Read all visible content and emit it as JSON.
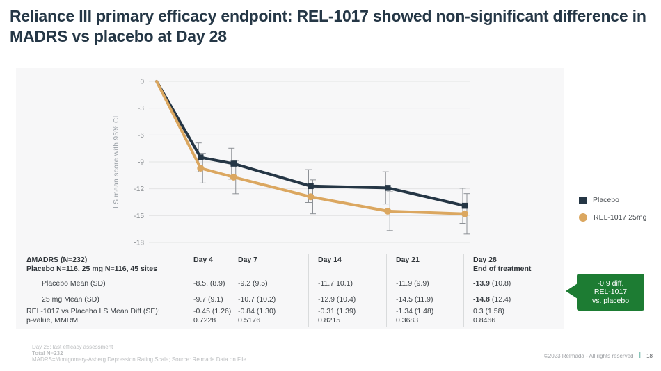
{
  "title": "Reliance III primary efficacy endpoint: REL-1017 showed non-significant difference in MADRS vs placebo at Day 28",
  "chart_data": {
    "type": "line",
    "ylabel": "LS mean score with 95% CI",
    "x_days": [
      0,
      4,
      7,
      14,
      21,
      28
    ],
    "yticks": [
      0,
      -3,
      -6,
      -9,
      -12,
      -15,
      -18
    ],
    "ylim": [
      0,
      -18
    ],
    "grid": true,
    "legend_position": "right",
    "error_bars": "95% CI",
    "n_per_arm": 116,
    "series": [
      {
        "name": "Placebo",
        "color": "#253645",
        "marker": "square",
        "values": [
          0,
          -8.5,
          -9.2,
          -11.7,
          -11.9,
          -13.9
        ],
        "sd": [
          null,
          8.9,
          9.5,
          10.1,
          9.9,
          10.8
        ]
      },
      {
        "name": "REL-1017 25mg",
        "color": "#dba760",
        "marker": "circle",
        "values": [
          0,
          -9.7,
          -10.7,
          -12.9,
          -14.5,
          -14.8
        ],
        "sd": [
          null,
          9.1,
          10.2,
          10.4,
          11.9,
          12.4
        ]
      }
    ]
  },
  "legend": {
    "items": [
      {
        "label": "Placebo",
        "color": "#253645",
        "marker": "square"
      },
      {
        "label": "REL-1017 25mg",
        "color": "#dba760",
        "marker": "circle"
      }
    ]
  },
  "table": {
    "header": {
      "col0_line1": "ΔMADRS (N=232)",
      "col0_line2": "Placebo N=116, 25 mg N=116, 45 sites",
      "days": [
        "Day 4",
        "Day 7",
        "Day 14",
        "Day 21",
        "Day 28"
      ],
      "day28_sub": "End of treatment"
    },
    "rows": [
      {
        "label": "Placebo Mean (SD)",
        "indent": true,
        "cells": [
          "-8.5, (8.9)",
          "-9.2 (9.5)",
          "-11.7 10.1)",
          "-11.9 (9.9)",
          {
            "strong": "-13.9",
            "rest": " (10.8)"
          }
        ]
      },
      {
        "label": "25 mg  Mean (SD)",
        "indent": true,
        "cells": [
          "-9.7 (9.1)",
          "-10.7 (10.2)",
          "-12.9 (10.4)",
          "-14.5 (11.9)",
          {
            "strong": "-14.8",
            "rest": " (12.4)"
          }
        ]
      },
      {
        "label": "REL-1017 vs Placebo LS Mean Diff (SE);",
        "label2": "p-value, MMRM",
        "indent": false,
        "cells": [
          [
            "-0.45 (1.26)",
            "0.7228"
          ],
          [
            "-0.84 (1.30)",
            "0.5176"
          ],
          [
            "-0.31 (1.39)",
            "0.8215"
          ],
          [
            "-1.34 (1.48)",
            "0.3683"
          ],
          [
            "0.3 (1.58)",
            "0.8466"
          ]
        ]
      }
    ]
  },
  "callout": {
    "lines": [
      "-0.9 diff.",
      "REL-1017",
      "vs. placebo"
    ],
    "color": "#1d7c33"
  },
  "footnotes": [
    "Day 28: last efficacy assessment",
    "Total N=232",
    "MADRS=Montgomery-Asberg Depression Rating Scale; Source: Relmada Data on File"
  ],
  "footer": {
    "copyright": "©2023 Relmada - All rights reserved",
    "page": "18"
  }
}
